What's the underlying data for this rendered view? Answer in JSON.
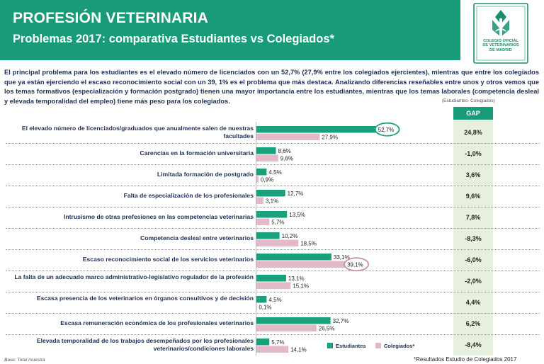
{
  "header": {
    "title": "PROFESIÓN VETERINARIA",
    "subtitle": "Problemas 2017: comparativa Estudiantes vs Colegiados*"
  },
  "logo": {
    "line1": "COLEGIO OFICIAL",
    "line2": "DE VETERINARIOS",
    "line3": "DE MADRID"
  },
  "intro": "El principal problema para los estudiantes es el elevado número de licenciados con un 52,7% (27,9% entre los colegiados ejercientes), mientras que  entre los colegiados que ya están ejerciendo el escaso reconocimiento social con un 39, 1% es el problema que más destaca. Analizando diferencias reseñables entre unos y otros vemos que los temas formativos (especialización y formación postgrado) tienen una mayor importancia entre los estudiantes, mientras que los temas laborales (competencia desleal y elevada temporalidad del empleo) tiene más peso para los colegiados.",
  "gap_note": "(Estudiantes- Colegiados)",
  "gap_header": "GAP",
  "colors": {
    "estudiantes": "#1aa07c",
    "colegiados": "#e3b8c8",
    "header": "#199a78",
    "gap_bg": "#e6f0dc"
  },
  "legend": {
    "estudiantes": "Estudiantes",
    "colegiados": "Colegiados*"
  },
  "base_note": "Base: Total muestra",
  "footnote": "*Resultados Estudio de Colegiados 2017",
  "chart_data": {
    "type": "bar",
    "orientation": "horizontal",
    "xlim": [
      0,
      60
    ],
    "categories": [
      "El elevado número de licenciados/graduados que anualmente salen de nuestras facultades",
      "Carencias en la formación universitaria",
      "Limitada formación de postgrado",
      "Falta de especialización de los profesionales",
      "Intrusismo de otras profesiones en las competencias veterinarias",
      "Competencia desleal entre veterinarios",
      "Escaso reconocimiento social de los servicios veterinarios",
      "La falta de un adecuado marco administrativo-legislativo regulador de la profesión",
      "Escasa presencia de los veterinarios en órganos consultivos y de decisión",
      "Escasa remuneración económica de los profesionales veterinarios",
      "Elevada temporalidad de los trabajos desempeñados por los profesionales veterinarios/condiciones laborales"
    ],
    "series": [
      {
        "name": "Estudiantes",
        "values": [
          52.7,
          8.6,
          4.5,
          12.7,
          13.5,
          10.2,
          33.1,
          13.1,
          4.5,
          32.7,
          5.7
        ],
        "labels": [
          "52,7%",
          "8,6%",
          "4,5%",
          "12,7%",
          "13,5%",
          "10,2%",
          "33,1%",
          "13,1%",
          "4,5%",
          "32,7%",
          "5,7%"
        ]
      },
      {
        "name": "Colegiados*",
        "values": [
          27.9,
          9.6,
          0.9,
          3.1,
          5.7,
          18.5,
          39.1,
          15.1,
          0.1,
          26.5,
          14.1
        ],
        "labels": [
          "27,9%",
          "9,6%",
          "0,9%",
          "3,1%",
          "5,7%",
          "18,5%",
          "39,1%",
          "15,1%",
          "0,1%",
          "26,5%",
          "14,1%"
        ]
      }
    ],
    "gap": [
      "24,8%",
      "-1,0%",
      "3,6%",
      "9,6%",
      "7,8%",
      "-8,3%",
      "-6,0%",
      "-2,0%",
      "4,4%",
      "6,2%",
      "-8,4%"
    ],
    "highlights": [
      {
        "series": "Estudiantes",
        "category_index": 0
      },
      {
        "series": "Colegiados*",
        "category_index": 6
      }
    ]
  }
}
